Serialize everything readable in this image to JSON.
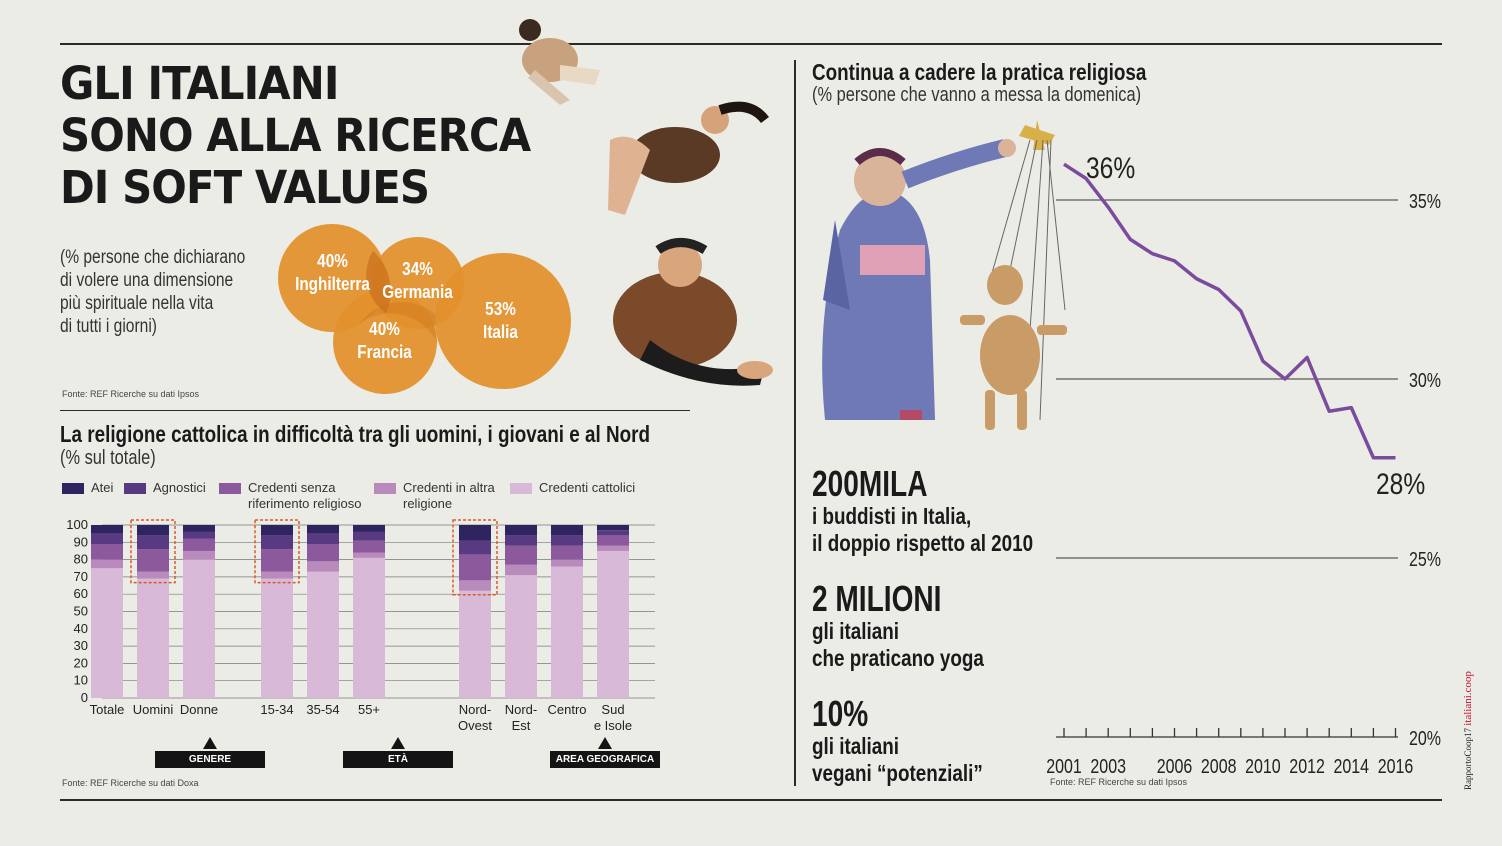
{
  "title": {
    "line1": "GLI ITALIANI",
    "line2": "SONO ALLA RICERCA",
    "line3": "DI SOFT VALUES"
  },
  "spiritual": {
    "note": [
      "(% persone che dichiarano",
      "di volere una dimensione",
      "più spirituale nella vita",
      "di tutti i giorni)"
    ],
    "countries": [
      {
        "pct": "40%",
        "name": "Inghilterra",
        "value": 40
      },
      {
        "pct": "34%",
        "name": "Germania",
        "value": 34
      },
      {
        "pct": "40%",
        "name": "Francia",
        "value": 40
      },
      {
        "pct": "53%",
        "name": "Italia",
        "value": 53
      }
    ],
    "source": "Fonte: REF Ricerche su dati Ipsos",
    "color": "#e2902b"
  },
  "religion": {
    "title": "La religione cattolica in difficoltà tra gli uomini, i giovani e al Nord",
    "subtitle": "(% sul totale)",
    "legend": [
      {
        "label": "Atei",
        "color": "#2e2560"
      },
      {
        "label": "Agnostici",
        "color": "#583a83"
      },
      {
        "label": "Credenti senza riferimento religioso",
        "color": "#8c5a9c"
      },
      {
        "label": "Credenti in altra religione",
        "color": "#b98bbd"
      },
      {
        "label": "Credenti cattolici",
        "color": "#d8b9d8"
      }
    ],
    "groups": [
      {
        "label": "GENERE"
      },
      {
        "label": "ETÀ"
      },
      {
        "label": "AREA GEOGRAFICA"
      }
    ],
    "source": "Fonte: REF Ricerche su dati Doxa"
  },
  "chart_data": [
    {
      "type": "bar",
      "stacked": true,
      "title": "La religione cattolica in difficoltà tra gli uomini, i giovani e al Nord",
      "subtitle": "(% sul totale)",
      "ylim": [
        0,
        100
      ],
      "yticks": [
        0,
        10,
        20,
        30,
        40,
        50,
        60,
        70,
        80,
        90,
        100
      ],
      "categories": [
        "Totale",
        "Uomini",
        "Donne",
        "15-34",
        "35-54",
        "55+",
        "Nord-Ovest",
        "Nord-Est",
        "Centro",
        "Sud e Isole"
      ],
      "category_lines": [
        [
          "Totale"
        ],
        [
          "Uomini"
        ],
        [
          "Donne"
        ],
        [
          "15-34"
        ],
        [
          "35-54"
        ],
        [
          "55+"
        ],
        [
          "Nord-",
          "Ovest"
        ],
        [
          "Nord-",
          "Est"
        ],
        [
          "Centro"
        ],
        [
          "Sud",
          "e Isole"
        ]
      ],
      "highlighted": [
        "Uomini",
        "15-34",
        "Nord-Ovest"
      ],
      "series": [
        {
          "name": "Credenti cattolici",
          "values": [
            75,
            69,
            80,
            69,
            73,
            81,
            62,
            71,
            76,
            85
          ]
        },
        {
          "name": "Credenti in altra religione",
          "values": [
            5,
            4,
            5,
            4,
            6,
            3,
            6,
            6,
            4,
            3
          ]
        },
        {
          "name": "Credenti senza riferimento religioso",
          "values": [
            9,
            13,
            7,
            13,
            10,
            7,
            15,
            11,
            8,
            6
          ]
        },
        {
          "name": "Agnostici",
          "values": [
            6,
            8,
            4,
            8,
            6,
            5,
            8,
            6,
            6,
            3
          ]
        },
        {
          "name": "Atei",
          "values": [
            5,
            6,
            4,
            6,
            5,
            4,
            9,
            6,
            6,
            3
          ]
        }
      ]
    },
    {
      "type": "line",
      "title": "Continua a cadere la pratica religiosa",
      "subtitle": "(% persone che vanno a messa la domenica)",
      "x": [
        2001,
        2002,
        2003,
        2004,
        2005,
        2006,
        2007,
        2008,
        2009,
        2010,
        2011,
        2012,
        2013,
        2014,
        2015,
        2016
      ],
      "y": [
        36,
        35.6,
        34.8,
        33.9,
        33.5,
        33.3,
        32.8,
        32.5,
        31.9,
        30.5,
        30.0,
        30.6,
        29.1,
        29.2,
        27.8,
        27.8
      ],
      "xticks": [
        2001,
        2003,
        2006,
        2008,
        2010,
        2012,
        2014,
        2016
      ],
      "yticks": [
        20,
        25,
        30,
        35
      ],
      "ytick_labels": [
        "20%",
        "25%",
        "30%",
        "35%"
      ],
      "ylim": [
        20,
        37
      ],
      "start_label": "36%",
      "end_label": "28%",
      "color": "#7b4c9e"
    }
  ],
  "practice": {
    "title": "Continua a cadere la pratica religiosa",
    "subtitle": "(% persone che vanno a messa la domenica)",
    "source": "Fonte: REF Ricerche su dati Ipsos"
  },
  "stats": [
    {
      "big": "200MILA",
      "line1": "i buddisti in Italia,",
      "line2": "il doppio rispetto al 2010"
    },
    {
      "big": "2 MILIONI",
      "line1": "gli italiani",
      "line2": "che praticano yoga"
    },
    {
      "big": "10%",
      "line1": "gli italiani",
      "line2": "vegani “potenziali”"
    }
  ],
  "credit": {
    "left": "RapportoCoop17",
    "right": "italiani.coop",
    "right_color": "#c8102e"
  }
}
